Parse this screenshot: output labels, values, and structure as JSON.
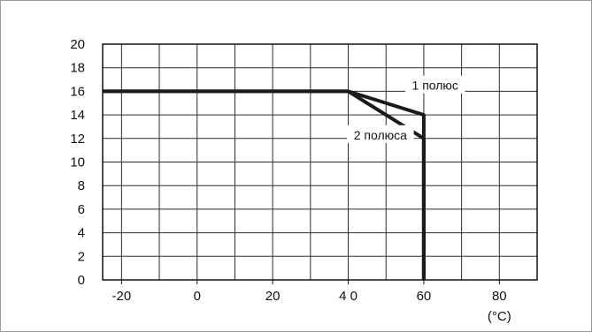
{
  "chart_data": {
    "type": "line",
    "title": "",
    "xlabel": "(°C)",
    "ylabel": "",
    "xlim": [
      -25,
      90
    ],
    "ylim": [
      0,
      20
    ],
    "grid": true,
    "x_ticks": [
      -20,
      -10,
      0,
      10,
      20,
      30,
      40,
      50,
      60,
      70,
      80
    ],
    "x_tick_labels": [
      "-20",
      "",
      "0",
      "",
      "20",
      "",
      "4 0",
      "",
      "60",
      "",
      "80"
    ],
    "y_ticks": [
      0,
      2,
      4,
      6,
      8,
      10,
      12,
      14,
      16,
      18,
      20
    ],
    "y_tick_labels": [
      "0",
      "2",
      "4",
      "6",
      "8",
      "10",
      "12",
      "14",
      "16",
      "18",
      "20"
    ],
    "series": [
      {
        "name": "1 полюс",
        "x": [
          -25,
          40,
          60,
          60
        ],
        "y": [
          16,
          16,
          14,
          0
        ]
      },
      {
        "name": "2 полюса",
        "x": [
          -25,
          40,
          60,
          60
        ],
        "y": [
          16,
          16,
          12,
          0
        ]
      }
    ],
    "annotations": [
      {
        "text": "1 полюс",
        "x": 63,
        "y": 16.5
      },
      {
        "text": "2 полюса",
        "x": 48.5,
        "y": 12.3
      }
    ],
    "colors": {
      "line": "#1a1a1a",
      "grid": "#2b2b2b",
      "frame": "#9a9a9a"
    }
  }
}
